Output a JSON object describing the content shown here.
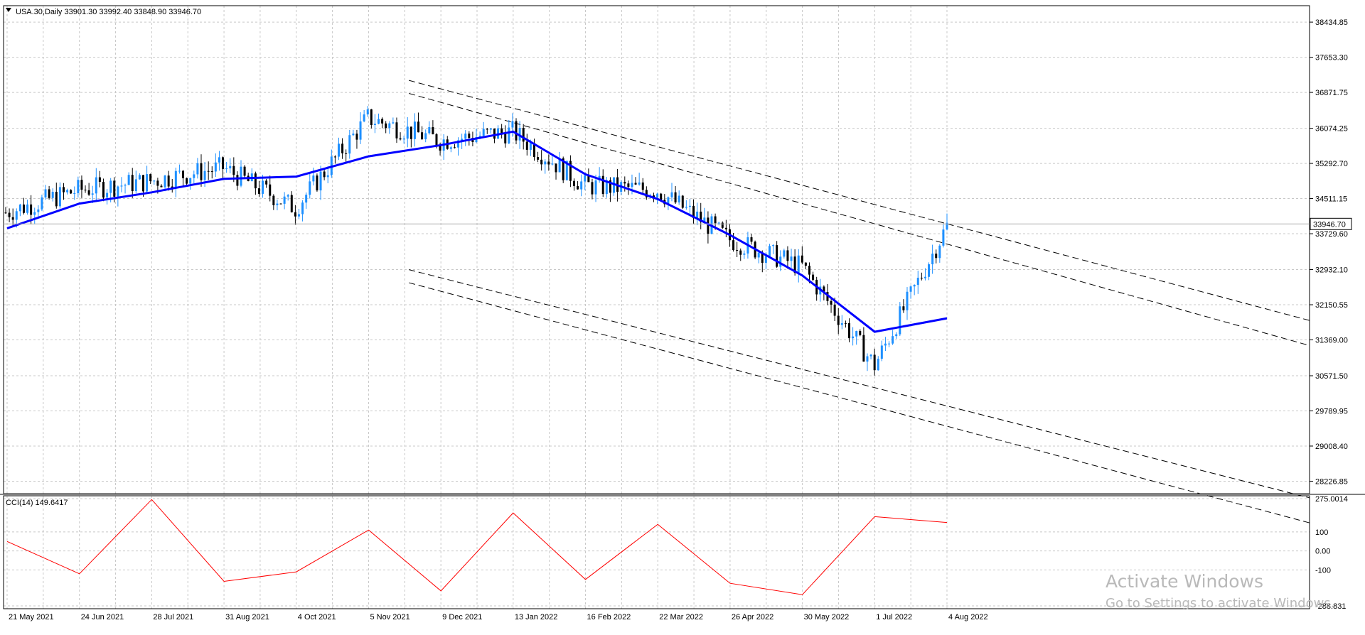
{
  "window": {
    "symbol_header": "USA.30,Daily  33901.30 33992.40 33848.90 33946.70",
    "current_price_label": "33946.70"
  },
  "colors": {
    "background": "#ffffff",
    "grid": "#c8c8c8",
    "candle_up": "#1e90ff",
    "candle_down": "#000000",
    "moving_average": "#0000ff",
    "cci_line": "#ff0000",
    "trendline": "#000000"
  },
  "chart_data": [
    {
      "type": "candlestick",
      "title": "USA.30,Daily",
      "ohlc_last": {
        "open": 33901.3,
        "high": 33992.4,
        "low": 33848.9,
        "close": 33946.7
      },
      "price_axis_ticks": [
        "38434.85",
        "37653.30",
        "36871.75",
        "36074.25",
        "35292.70",
        "34511.15",
        "33729.60",
        "32932.10",
        "32150.55",
        "31369.00",
        "30571.50",
        "29789.95",
        "29008.40",
        "28226.85"
      ],
      "ylim": [
        27950,
        38800
      ],
      "grid": true,
      "x_ticks": [
        "21 May 2021",
        "24 Jun 2021",
        "28 Jul 2021",
        "31 Aug 2021",
        "4 Oct 2021",
        "5 Nov 2021",
        "9 Dec 2021",
        "13 Jan 2022",
        "16 Feb 2022",
        "22 Mar 2022",
        "26 Apr 2022",
        "30 May 2022",
        "1 Jul 2022",
        "4 Aug 2022"
      ],
      "approx_close_by_tick": [
        34200,
        34700,
        34900,
        35200,
        34300,
        36300,
        35800,
        36000,
        34800,
        34700,
        33600,
        33000,
        30800,
        33900
      ],
      "moving_average": {
        "x": [
          "21 May 2021",
          "24 Jun 2021",
          "28 Jul 2021",
          "31 Aug 2021",
          "4 Oct 2021",
          "5 Nov 2021",
          "9 Dec 2021",
          "13 Jan 2022",
          "16 Feb 2022",
          "22 Mar 2022",
          "26 Apr 2022",
          "30 May 2022",
          "1 Jul 2022",
          "4 Aug 2022"
        ],
        "values": [
          33850,
          34400,
          34650,
          34950,
          35000,
          35450,
          35700,
          36000,
          35050,
          34500,
          33700,
          32800,
          31550,
          31850
        ]
      },
      "trendlines": [
        {
          "from": [
            "9 Dec 2021",
            36950
          ],
          "to": [
            "4 Aug 2022",
            33950
          ],
          "style": "dashed"
        },
        {
          "from": [
            "9 Dec 2021",
            36650
          ],
          "to": [
            "4 Aug 2022",
            33500
          ],
          "style": "dashed"
        },
        {
          "from": [
            "9 Dec 2021",
            32750
          ],
          "to": [
            "4 Aug 2022",
            29900
          ],
          "style": "dashed"
        },
        {
          "from": [
            "9 Dec 2021",
            32450
          ],
          "to": [
            "4 Aug 2022",
            29450
          ],
          "style": "dashed"
        }
      ]
    },
    {
      "type": "line",
      "title": "CCI(14) 149.6417",
      "y_ticks": [
        "275.0014",
        "100",
        "0.00",
        "-100",
        "-288.831"
      ],
      "ylim": [
        -288.831,
        275.0014
      ],
      "x": [
        "21 May 2021",
        "24 Jun 2021",
        "28 Jul 2021",
        "31 Aug 2021",
        "4 Oct 2021",
        "5 Nov 2021",
        "9 Dec 2021",
        "13 Jan 2022",
        "16 Feb 2022",
        "22 Mar 2022",
        "26 Apr 2022",
        "30 May 2022",
        "1 Jul 2022",
        "4 Aug 2022"
      ],
      "values": [
        50,
        -120,
        270,
        -160,
        -110,
        110,
        -210,
        200,
        -150,
        140,
        -170,
        -230,
        180,
        149.64
      ],
      "series": [
        {
          "name": "CCI(14)"
        }
      ]
    }
  ],
  "watermark": {
    "title": "Activate Windows",
    "subtitle": "Go to Settings to activate Windows."
  }
}
